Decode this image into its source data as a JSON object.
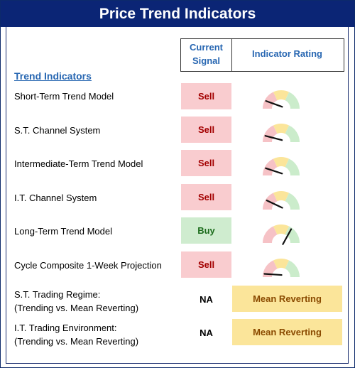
{
  "title": "Price Trend Indicators",
  "headers": {
    "signal_line1": "Current",
    "signal_line2": "Signal",
    "rating": "Indicator Rating"
  },
  "section": "Trend Indicators",
  "colors": {
    "title_bg": "#0b2575",
    "header_text": "#2867b2",
    "sell_bg": "#f9cccf",
    "sell_text": "#a30000",
    "buy_bg": "#cfeccf",
    "buy_text": "#1b6b1b",
    "regime_bg": "#fbe59a",
    "regime_text": "#8a4a00",
    "gauge_red": "#f6c2c6",
    "gauge_yellow": "#fbe59a",
    "gauge_green": "#cbeccb"
  },
  "indicators": [
    {
      "label": "Short-Term Trend Model",
      "signal": "Sell",
      "rating": 0.15
    },
    {
      "label": "S.T. Channel System",
      "signal": "Sell",
      "rating": 0.12
    },
    {
      "label": "Intermediate-Term Trend Model",
      "signal": "Sell",
      "rating": 0.14
    },
    {
      "label": "I.T. Channel System",
      "signal": "Sell",
      "rating": 0.18
    },
    {
      "label": "Long-Term Trend Model",
      "signal": "Buy",
      "rating": 0.7
    },
    {
      "label": "Cycle Composite 1-Week Projection",
      "signal": "Sell",
      "rating": 0.06
    }
  ],
  "regimes": [
    {
      "line1": "S.T. Trading Regime:",
      "line2": "(Trending vs. Mean Reverting)",
      "signal": "NA",
      "rating": "Mean Reverting"
    },
    {
      "line1": "I.T. Trading Environment:",
      "line2": "(Trending vs. Mean Reverting)",
      "signal": "NA",
      "rating": "Mean Reverting"
    }
  ]
}
